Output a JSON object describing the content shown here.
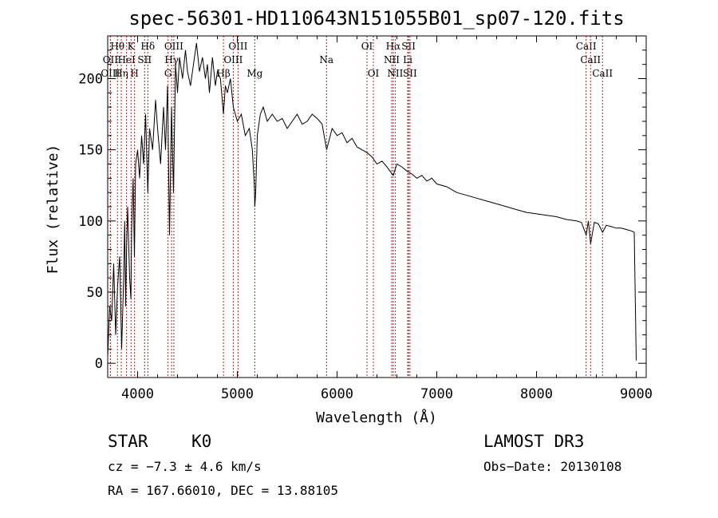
{
  "chart_data": {
    "type": "line",
    "title": "spec-56301-HD110643N151055B01_sp07-120.fits",
    "xlabel": "Wavelength (Å)",
    "ylabel": "Flux (relative)",
    "xlim": [
      3700,
      9100
    ],
    "ylim": [
      -10,
      230
    ],
    "xticks": [
      4000,
      5000,
      6000,
      7000,
      8000,
      9000
    ],
    "yticks": [
      0,
      50,
      100,
      150,
      200
    ],
    "series": [
      {
        "name": "flux",
        "x": [
          3700,
          3720,
          3740,
          3760,
          3780,
          3800,
          3820,
          3840,
          3860,
          3870,
          3880,
          3890,
          3900,
          3920,
          3933,
          3940,
          3955,
          3968,
          3980,
          4000,
          4020,
          4040,
          4060,
          4080,
          4102,
          4120,
          4150,
          4180,
          4200,
          4230,
          4260,
          4280,
          4300,
          4320,
          4340,
          4360,
          4380,
          4400,
          4420,
          4450,
          4480,
          4500,
          4530,
          4560,
          4590,
          4620,
          4650,
          4680,
          4700,
          4720,
          4750,
          4780,
          4800,
          4830,
          4861,
          4880,
          4900,
          4930,
          4960,
          5000,
          5040,
          5080,
          5120,
          5150,
          5170,
          5175,
          5184,
          5200,
          5230,
          5260,
          5300,
          5350,
          5400,
          5450,
          5500,
          5550,
          5600,
          5650,
          5700,
          5750,
          5800,
          5850,
          5895,
          5950,
          6000,
          6050,
          6100,
          6150,
          6200,
          6250,
          6300,
          6350,
          6400,
          6450,
          6500,
          6563,
          6600,
          6650,
          6700,
          6750,
          6800,
          6850,
          6900,
          6950,
          7000,
          7100,
          7200,
          7300,
          7400,
          7500,
          7600,
          7700,
          7800,
          7900,
          8000,
          8100,
          8200,
          8300,
          8400,
          8450,
          8498,
          8520,
          8542,
          8580,
          8620,
          8662,
          8700,
          8750,
          8800,
          8850,
          8900,
          8950,
          8980,
          9000
        ],
        "y": [
          5,
          40,
          30,
          70,
          20,
          55,
          75,
          10,
          60,
          100,
          40,
          85,
          110,
          60,
          45,
          95,
          130,
          75,
          140,
          150,
          130,
          160,
          140,
          175,
          120,
          165,
          150,
          185,
          165,
          140,
          180,
          150,
          195,
          90,
          180,
          120,
          210,
          190,
          215,
          200,
          220,
          205,
          195,
          210,
          225,
          205,
          215,
          200,
          210,
          190,
          215,
          195,
          205,
          200,
          175,
          195,
          190,
          200,
          180,
          170,
          175,
          160,
          165,
          150,
          125,
          110,
          120,
          160,
          175,
          180,
          170,
          175,
          170,
          172,
          165,
          170,
          175,
          168,
          170,
          175,
          172,
          168,
          150,
          165,
          160,
          162,
          155,
          158,
          152,
          150,
          148,
          145,
          140,
          142,
          138,
          132,
          140,
          138,
          135,
          133,
          130,
          132,
          128,
          130,
          126,
          124,
          120,
          118,
          116,
          114,
          112,
          110,
          108,
          106,
          105,
          104,
          103,
          101,
          100,
          99,
          90,
          100,
          84,
          99,
          98,
          92,
          97,
          96,
          95,
          95,
          94,
          93,
          92,
          2
        ]
      }
    ],
    "lines": [
      {
        "name": "Hθ",
        "wave": 3798,
        "row": 0
      },
      {
        "name": "OII",
        "wave": 3727,
        "row": 1
      },
      {
        "name": "OIII",
        "wave": 3727,
        "row": 2
      },
      {
        "name": "Hη",
        "wave": 3836,
        "row": 2
      },
      {
        "name": "HeI",
        "wave": 3889,
        "row": 1
      },
      {
        "name": "K",
        "wave": 3934,
        "row": 0
      },
      {
        "name": "SII",
        "wave": 4070,
        "row": 1
      },
      {
        "name": "H",
        "wave": 3969,
        "row": 2
      },
      {
        "name": "Hδ",
        "wave": 4102,
        "row": 0
      },
      {
        "name": "OIII",
        "wave": 4363,
        "row": 0
      },
      {
        "name": "Hγ",
        "wave": 4341,
        "row": 1
      },
      {
        "name": "G",
        "wave": 4305,
        "row": 2
      },
      {
        "name": "Hβ",
        "wave": 4861,
        "row": 2
      },
      {
        "name": "OIII",
        "wave": 5007,
        "row": 0
      },
      {
        "name": "OIII",
        "wave": 4959,
        "row": 1
      },
      {
        "name": "Mg",
        "wave": 5175,
        "row": 2
      },
      {
        "name": "Na",
        "wave": 5894,
        "row": 1
      },
      {
        "name": "OI",
        "wave": 6300,
        "row": 0
      },
      {
        "name": "OI",
        "wave": 6364,
        "row": 2
      },
      {
        "name": "Hα",
        "wave": 6563,
        "row": 0
      },
      {
        "name": "NII",
        "wave": 6548,
        "row": 1
      },
      {
        "name": "NII",
        "wave": 6583,
        "row": 2
      },
      {
        "name": "SII",
        "wave": 6717,
        "row": 0
      },
      {
        "name": "Li",
        "wave": 6708,
        "row": 1
      },
      {
        "name": "SII",
        "wave": 6731,
        "row": 2
      },
      {
        "name": "CaII",
        "wave": 8498,
        "row": 0
      },
      {
        "name": "CaII",
        "wave": 8542,
        "row": 1
      },
      {
        "name": "CaII",
        "wave": 8662,
        "row": 2
      }
    ]
  },
  "info": {
    "class": "STAR",
    "subclass": "K0",
    "survey": "LAMOST DR3",
    "cz": "cz = −7.3 ± 4.6 km/s",
    "obs_date": "Obs−Date: 20130108",
    "radec": "RA = 167.66010, DEC =  13.88105"
  }
}
